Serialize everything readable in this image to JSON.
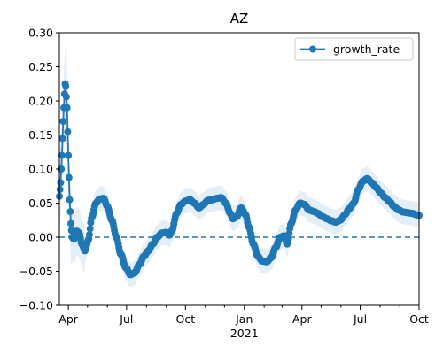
{
  "chart_data": {
    "type": "line",
    "title": "AZ",
    "xlabel": "",
    "ylabel": "",
    "y_ticks": [
      -0.1,
      -0.05,
      0.0,
      0.05,
      0.1,
      0.15,
      0.2,
      0.25,
      0.3
    ],
    "y_tick_labels": [
      "−0.10",
      "−0.05",
      "0.00",
      "0.05",
      "0.10",
      "0.15",
      "0.20",
      "0.25",
      "0.30"
    ],
    "ylim": [
      -0.1,
      0.3
    ],
    "xlim": [
      "2020-03-18",
      "2021-10-01"
    ],
    "x_major_ticks": [
      {
        "date": "2020-04-01",
        "label": "Apr"
      },
      {
        "date": "2020-07-01",
        "label": "Jul"
      },
      {
        "date": "2020-10-01",
        "label": "Oct"
      },
      {
        "date": "2021-01-01",
        "label": "Jan"
      },
      {
        "date": "2021-04-01",
        "label": "Apr"
      },
      {
        "date": "2021-07-01",
        "label": "Jul"
      },
      {
        "date": "2021-10-01",
        "label": "Oct"
      }
    ],
    "x_minor_ticks": [
      "2020-05-01",
      "2020-06-01",
      "2020-08-01",
      "2020-09-01",
      "2020-11-01",
      "2020-12-01",
      "2021-02-01",
      "2021-03-01",
      "2021-05-01",
      "2021-06-01",
      "2021-08-01",
      "2021-09-01"
    ],
    "x_year_label": "2021",
    "legend": {
      "position": "top-right",
      "entries": [
        "growth_rate"
      ]
    },
    "reference_line": {
      "y": 0.0,
      "style": "dashed"
    },
    "colors": {
      "series": "#1f77b4",
      "band": "#1f77b4"
    },
    "series": [
      {
        "name": "growth_rate",
        "keypoints": [
          [
            "2020-03-18",
            0.06
          ],
          [
            "2020-03-20",
            0.08
          ],
          [
            "2020-03-22",
            0.12
          ],
          [
            "2020-03-24",
            0.17
          ],
          [
            "2020-03-26",
            0.21
          ],
          [
            "2020-03-27",
            0.225
          ],
          [
            "2020-03-28",
            0.222
          ],
          [
            "2020-03-30",
            0.19
          ],
          [
            "2020-04-01",
            0.12
          ],
          [
            "2020-04-03",
            0.055
          ],
          [
            "2020-04-05",
            0.02
          ],
          [
            "2020-04-07",
            0.0
          ],
          [
            "2020-04-10",
            -0.003
          ],
          [
            "2020-04-14",
            0.009
          ],
          [
            "2020-04-18",
            0.006
          ],
          [
            "2020-04-22",
            -0.01
          ],
          [
            "2020-04-27",
            -0.02
          ],
          [
            "2020-05-02",
            -0.005
          ],
          [
            "2020-05-08",
            0.03
          ],
          [
            "2020-05-14",
            0.05
          ],
          [
            "2020-05-20",
            0.056
          ],
          [
            "2020-05-26",
            0.057
          ],
          [
            "2020-06-01",
            0.045
          ],
          [
            "2020-06-08",
            0.025
          ],
          [
            "2020-06-15",
            0.0
          ],
          [
            "2020-06-22",
            -0.025
          ],
          [
            "2020-06-30",
            -0.045
          ],
          [
            "2020-07-07",
            -0.055
          ],
          [
            "2020-07-14",
            -0.052
          ],
          [
            "2020-07-21",
            -0.04
          ],
          [
            "2020-07-28",
            -0.028
          ],
          [
            "2020-08-04",
            -0.02
          ],
          [
            "2020-08-11",
            -0.01
          ],
          [
            "2020-08-18",
            0.0
          ],
          [
            "2020-08-25",
            0.006
          ],
          [
            "2020-09-01",
            0.007
          ],
          [
            "2020-09-06",
            0.003
          ],
          [
            "2020-09-10",
            0.01
          ],
          [
            "2020-09-17",
            0.035
          ],
          [
            "2020-09-24",
            0.048
          ],
          [
            "2020-10-01",
            0.053
          ],
          [
            "2020-10-08",
            0.055
          ],
          [
            "2020-10-15",
            0.05
          ],
          [
            "2020-10-22",
            0.043
          ],
          [
            "2020-10-29",
            0.048
          ],
          [
            "2020-11-05",
            0.054
          ],
          [
            "2020-11-12",
            0.055
          ],
          [
            "2020-11-19",
            0.057
          ],
          [
            "2020-11-26",
            0.058
          ],
          [
            "2020-12-03",
            0.05
          ],
          [
            "2020-12-10",
            0.035
          ],
          [
            "2020-12-14",
            0.027
          ],
          [
            "2020-12-20",
            0.03
          ],
          [
            "2020-12-27",
            0.043
          ],
          [
            "2021-01-03",
            0.033
          ],
          [
            "2021-01-08",
            0.015
          ],
          [
            "2021-01-15",
            -0.01
          ],
          [
            "2021-01-22",
            -0.028
          ],
          [
            "2021-01-29",
            -0.035
          ],
          [
            "2021-02-05",
            -0.036
          ],
          [
            "2021-02-12",
            -0.03
          ],
          [
            "2021-02-19",
            -0.015
          ],
          [
            "2021-02-26",
            0.0
          ],
          [
            "2021-03-04",
            0.002
          ],
          [
            "2021-03-09",
            -0.01
          ],
          [
            "2021-03-15",
            0.02
          ],
          [
            "2021-03-22",
            0.04
          ],
          [
            "2021-03-29",
            0.05
          ],
          [
            "2021-04-05",
            0.048
          ],
          [
            "2021-04-12",
            0.04
          ],
          [
            "2021-04-19",
            0.038
          ],
          [
            "2021-04-26",
            0.035
          ],
          [
            "2021-05-03",
            0.03
          ],
          [
            "2021-05-10",
            0.027
          ],
          [
            "2021-05-17",
            0.024
          ],
          [
            "2021-05-24",
            0.022
          ],
          [
            "2021-05-31",
            0.025
          ],
          [
            "2021-06-07",
            0.033
          ],
          [
            "2021-06-14",
            0.042
          ],
          [
            "2021-06-21",
            0.05
          ],
          [
            "2021-06-28",
            0.07
          ],
          [
            "2021-07-05",
            0.082
          ],
          [
            "2021-07-12",
            0.086
          ],
          [
            "2021-07-19",
            0.08
          ],
          [
            "2021-07-26",
            0.073
          ],
          [
            "2021-08-02",
            0.065
          ],
          [
            "2021-08-09",
            0.058
          ],
          [
            "2021-08-16",
            0.052
          ],
          [
            "2021-08-23",
            0.045
          ],
          [
            "2021-08-30",
            0.04
          ],
          [
            "2021-09-06",
            0.037
          ],
          [
            "2021-09-13",
            0.036
          ],
          [
            "2021-09-20",
            0.035
          ],
          [
            "2021-09-27",
            0.033
          ],
          [
            "2021-10-01",
            0.032
          ]
        ]
      }
    ]
  }
}
